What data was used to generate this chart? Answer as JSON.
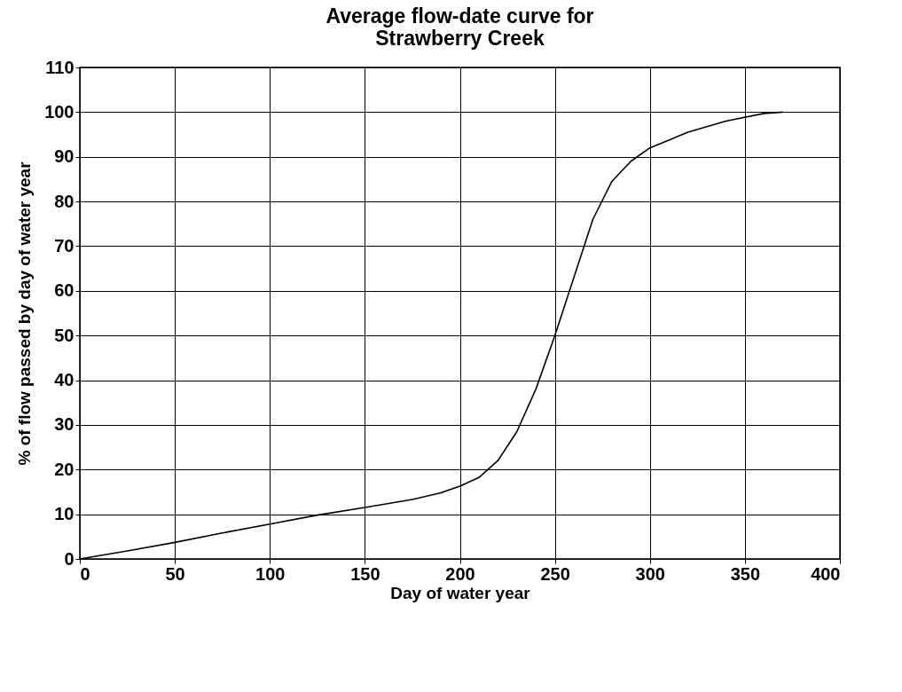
{
  "chart_data": {
    "type": "line",
    "title": [
      "Average flow-date curve for",
      "Strawberry Creek"
    ],
    "xlabel": "Day of water year",
    "ylabel": "% of flow passed by day of water year",
    "x": [
      0,
      25,
      50,
      75,
      100,
      125,
      150,
      175,
      190,
      200,
      210,
      220,
      230,
      240,
      250,
      260,
      270,
      280,
      290,
      300,
      320,
      340,
      360,
      370
    ],
    "series": [
      {
        "color": "#000000",
        "values": [
          0,
          1.8,
          3.7,
          5.8,
          7.8,
          9.8,
          11.5,
          13.3,
          14.8,
          16.3,
          18.2,
          22,
          28.5,
          38,
          50,
          63,
          76,
          84.5,
          89,
          92,
          95.5,
          98,
          99.7,
          100
        ]
      }
    ],
    "xlim": [
      0,
      400
    ],
    "xticks": [
      0,
      50,
      100,
      150,
      200,
      250,
      300,
      350,
      400
    ],
    "ylim": [
      0,
      110
    ],
    "yticks": [
      0,
      10,
      20,
      30,
      40,
      50,
      60,
      70,
      80,
      90,
      100,
      110
    ],
    "grid": true,
    "marker": "none",
    "line_style": "solid"
  }
}
